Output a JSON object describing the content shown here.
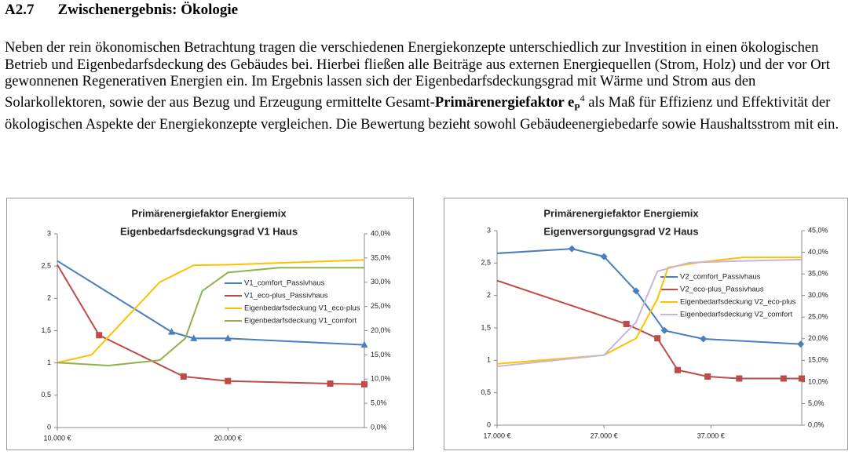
{
  "heading": {
    "number": "A2.7",
    "title": "Zwischenergebnis: Ökologie"
  },
  "paragraph": {
    "text_before": "Neben der rein ökonomischen Betrachtung tragen die verschiedenen Energiekonzepte unterschiedlich zur Investition in einen ökologischen Betrieb und Eigenbedarfsdeckung des Gebäudes bei. Hierbei fließen alle Beiträge aus externen Energiequellen (Strom, Holz) und der vor Ort gewonnenen Regenerativen Energien ein. Im Ergebnis lassen sich der Eigenbedarfsdeckungsgrad mit Wärme und Strom aus den Solarkollektoren, sowie der aus Bezug und Erzeugung ermittelte Gesamt-",
    "bold": "Primärenergiefaktor e",
    "subscript": "P",
    "superscript": "4",
    "text_after": " als Maß für Effizienz und Effektivität der ökologischen Aspekte der Energiekonzepte vergleichen. Die Bewertung bezieht sowohl Gebäudeenergiebedarfe sowie Haushaltsstrom mit ein."
  },
  "chart_data": [
    {
      "type": "line",
      "title": "Primärenergiefaktor Energiemix",
      "subtitle": "Eigenbedarfsdeckungsgrad V1 Haus",
      "legend": "center",
      "xlim": [
        10000,
        28000
      ],
      "xticks": [
        {
          "value": 10000,
          "label": "10.000 €"
        },
        {
          "value": 20000,
          "label": "20.000 €"
        }
      ],
      "ylim": [
        0,
        3
      ],
      "yticks": [
        0,
        {
          "value": 0.5,
          "label": "0,5"
        },
        1,
        {
          "value": 1.5,
          "label": "1,5"
        },
        2,
        {
          "value": 2.5,
          "label": "2,5"
        },
        3
      ],
      "y2lim": [
        0,
        40
      ],
      "y2ticks": [
        {
          "value": 0,
          "label": "0,0%"
        },
        {
          "value": 5,
          "label": "5,0%"
        },
        {
          "value": 10,
          "label": "10,0%"
        },
        {
          "value": 15,
          "label": "15,0%"
        },
        {
          "value": 20,
          "label": "20,0%"
        },
        {
          "value": 25,
          "label": "25,0%"
        },
        {
          "value": 30,
          "label": "30,0%"
        },
        {
          "value": 35,
          "label": "35,0%"
        },
        {
          "value": 40,
          "label": "40,0%"
        }
      ],
      "series": [
        {
          "name": "V1_comfort_Passivhaus",
          "color": "#4a7ebb",
          "marker": "triangle",
          "x": [
            10000,
            16700,
            18000,
            20000,
            28000
          ],
          "values": [
            2.58,
            1.48,
            1.38,
            1.38,
            1.28
          ]
        },
        {
          "name": "V1_eco-plus_Passivhaus",
          "color": "#be4b48",
          "marker": "square",
          "x": [
            10000,
            12450,
            17400,
            20000,
            26000,
            28000
          ],
          "values": [
            2.52,
            1.43,
            0.79,
            0.72,
            0.68,
            0.67
          ]
        },
        {
          "name": "Eigenbedarfsdeckung V1_eco-plus",
          "color": "#ffc000",
          "axis": "y2",
          "x": [
            10000,
            12000,
            14000,
            16000,
            18000,
            20000,
            24000,
            28000
          ],
          "values": [
            13.4,
            15,
            22.5,
            30,
            33.5,
            33.6,
            34.1,
            34.6
          ]
        },
        {
          "name": "Eigenbedarfsdeckung V1_comfort",
          "color": "#8db34a",
          "axis": "y2",
          "x": [
            10000,
            13000,
            16000,
            17500,
            18500,
            20000,
            23000,
            28000
          ],
          "values": [
            13.4,
            12.8,
            13.9,
            18.4,
            28.2,
            32,
            33,
            33
          ]
        }
      ]
    },
    {
      "type": "line",
      "title": "Primärenergiefaktor Energiemix",
      "subtitle": "Eigenversorgungsgrad V2 Haus",
      "legend": "center",
      "xlim": [
        17000,
        45500
      ],
      "xticks": [
        {
          "value": 17000,
          "label": "17.000 €"
        },
        {
          "value": 27000,
          "label": "27.000 €"
        },
        {
          "value": 37000,
          "label": "37.000 €"
        }
      ],
      "ylim": [
        0,
        3
      ],
      "yticks": [
        0,
        {
          "value": 0.5,
          "label": "0,5"
        },
        1,
        {
          "value": 1.5,
          "label": "1,5"
        },
        2,
        {
          "value": 2.5,
          "label": "2,5"
        },
        3
      ],
      "y2lim": [
        0,
        45
      ],
      "y2ticks": [
        {
          "value": 0,
          "label": "0,0%"
        },
        {
          "value": 5,
          "label": "5,0%"
        },
        {
          "value": 10,
          "label": "10,0%"
        },
        {
          "value": 15,
          "label": "15,0%"
        },
        {
          "value": 20,
          "label": "20,0%"
        },
        {
          "value": 25,
          "label": "25,0%"
        },
        {
          "value": 30,
          "label": "30,0%"
        },
        {
          "value": 35,
          "label": "35,0%"
        },
        {
          "value": 40,
          "label": "40,0%"
        },
        {
          "value": 45,
          "label": "45,0%"
        }
      ],
      "series": [
        {
          "name": "V2_comfort_Passivhaus",
          "color": "#4a7ebb",
          "marker": "diamond",
          "x": [
            17000,
            24000,
            27000,
            30000,
            32660,
            36300,
            45400
          ],
          "values": [
            2.65,
            2.72,
            2.6,
            2.07,
            1.46,
            1.33,
            1.25
          ]
        },
        {
          "name": "V2_eco-plus_Passivhaus",
          "color": "#be4b48",
          "marker": "square",
          "x": [
            17000,
            29100,
            32000,
            33900,
            36700,
            39650,
            43800,
            45500
          ],
          "values": [
            2.23,
            1.56,
            1.34,
            0.85,
            0.75,
            0.72,
            0.72,
            0.72
          ]
        },
        {
          "name": "Eigenbedarfsdeckung V2_eco-plus",
          "color": "#ffc000",
          "axis": "y2",
          "x": [
            17000,
            27000,
            30000,
            32000,
            33000,
            36000,
            40000,
            45500
          ],
          "values": [
            14.2,
            16.2,
            20.1,
            29.2,
            36.5,
            37.7,
            38.8,
            38.8
          ]
        },
        {
          "name": "Eigenbedarfsdeckung V2_comfort",
          "color": "#c6b5dc",
          "axis": "y2",
          "x": [
            17000,
            27000,
            30000,
            32000,
            35000,
            40000,
            45500
          ],
          "values": [
            13.6,
            16.2,
            23.8,
            35.6,
            37.6,
            38,
            38.3
          ]
        }
      ]
    }
  ]
}
